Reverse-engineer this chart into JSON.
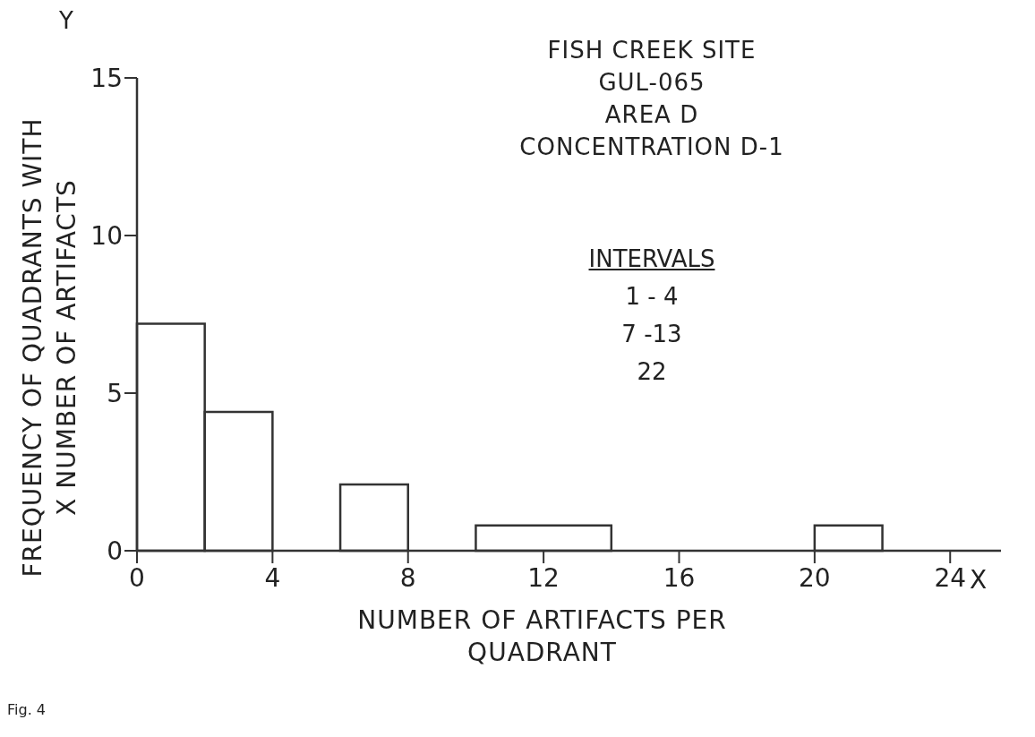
{
  "chart_data": {
    "type": "histogram",
    "title": "FISH CREEK SITE\nGUL-065\nAREA D\nCONCENTRATION D-1",
    "xlabel": "NUMBER OF ARTIFACTS PER\nQUADRANT",
    "ylabel": "FREQUENCY OF QUADRANTS WITH\nX NUMBER OF ARTIFACTS",
    "bins": [
      0,
      2,
      4,
      6,
      8,
      10,
      14,
      20,
      22
    ],
    "values": [
      7.2,
      4.4,
      0,
      2.1,
      0,
      0.8,
      0,
      0.8
    ],
    "color": "#333333",
    "xlim": [
      0,
      25.5
    ],
    "xticks": [
      0,
      4,
      8,
      12,
      16,
      20,
      24
    ],
    "ylim": [
      0,
      15
    ],
    "yticks": [
      0,
      5,
      10,
      15
    ],
    "annotations": [
      "INTERVALS",
      "1 - 4",
      "7 -13",
      "22",
      "Y",
      "X",
      "Fig. 4"
    ]
  }
}
